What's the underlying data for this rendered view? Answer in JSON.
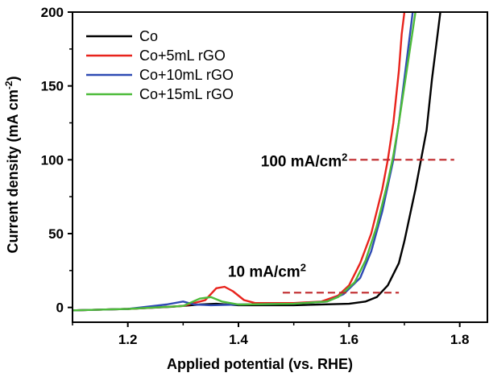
{
  "chart_data": {
    "type": "line",
    "xlabel": "Applied potential (vs. RHE)",
    "ylabel_main": "Current density (mA cm",
    "ylabel_sup": "-2",
    "ylabel_close": ")",
    "xlim": [
      1.1,
      1.85
    ],
    "ylim": [
      -10,
      200
    ],
    "x_ticks": [
      1.2,
      1.4,
      1.6,
      1.8
    ],
    "x_tick_labels": [
      "1.2",
      "1.4",
      "1.6",
      "1.8"
    ],
    "y_ticks": [
      0,
      50,
      100,
      150,
      200
    ],
    "y_tick_labels": [
      "0",
      "50",
      "100",
      "150",
      "200"
    ],
    "legend_position": "top-left",
    "series": [
      {
        "name": "Co",
        "color": "#000000",
        "points": [
          [
            1.1,
            -2
          ],
          [
            1.2,
            -1
          ],
          [
            1.28,
            0.5
          ],
          [
            1.33,
            2
          ],
          [
            1.36,
            2.5
          ],
          [
            1.4,
            1.5
          ],
          [
            1.5,
            1.5
          ],
          [
            1.6,
            2.5
          ],
          [
            1.63,
            4
          ],
          [
            1.65,
            7
          ],
          [
            1.67,
            15
          ],
          [
            1.69,
            30
          ],
          [
            1.7,
            45
          ],
          [
            1.72,
            80
          ],
          [
            1.74,
            120
          ],
          [
            1.75,
            155
          ],
          [
            1.76,
            185
          ],
          [
            1.765,
            200
          ]
        ]
      },
      {
        "name": "Co+5mL rGO",
        "color": "#e8231c",
        "points": [
          [
            1.1,
            -2
          ],
          [
            1.2,
            -1
          ],
          [
            1.3,
            1
          ],
          [
            1.34,
            5
          ],
          [
            1.36,
            13
          ],
          [
            1.375,
            14
          ],
          [
            1.39,
            11
          ],
          [
            1.41,
            5
          ],
          [
            1.43,
            3
          ],
          [
            1.5,
            3
          ],
          [
            1.55,
            4
          ],
          [
            1.58,
            8
          ],
          [
            1.6,
            15
          ],
          [
            1.62,
            30
          ],
          [
            1.64,
            50
          ],
          [
            1.66,
            80
          ],
          [
            1.67,
            100
          ],
          [
            1.68,
            125
          ],
          [
            1.69,
            160
          ],
          [
            1.695,
            185
          ],
          [
            1.7,
            200
          ]
        ]
      },
      {
        "name": "Co+10mL rGO",
        "color": "#2f4bb4",
        "points": [
          [
            1.1,
            -2
          ],
          [
            1.2,
            -1
          ],
          [
            1.27,
            2
          ],
          [
            1.3,
            4
          ],
          [
            1.32,
            2
          ],
          [
            1.35,
            1.5
          ],
          [
            1.4,
            2
          ],
          [
            1.5,
            2.5
          ],
          [
            1.56,
            4
          ],
          [
            1.59,
            9
          ],
          [
            1.62,
            20
          ],
          [
            1.64,
            38
          ],
          [
            1.66,
            65
          ],
          [
            1.68,
            100
          ],
          [
            1.69,
            125
          ],
          [
            1.7,
            155
          ],
          [
            1.71,
            185
          ],
          [
            1.715,
            200
          ]
        ]
      },
      {
        "name": "Co+15mL rGO",
        "color": "#4dbb3a",
        "points": [
          [
            1.1,
            -2
          ],
          [
            1.2,
            -1
          ],
          [
            1.3,
            1
          ],
          [
            1.33,
            6
          ],
          [
            1.35,
            7
          ],
          [
            1.37,
            4
          ],
          [
            1.4,
            2
          ],
          [
            1.5,
            2.5
          ],
          [
            1.56,
            4
          ],
          [
            1.58,
            7
          ],
          [
            1.61,
            17
          ],
          [
            1.63,
            32
          ],
          [
            1.65,
            55
          ],
          [
            1.67,
            85
          ],
          [
            1.68,
            103
          ],
          [
            1.69,
            125
          ],
          [
            1.7,
            150
          ],
          [
            1.71,
            175
          ],
          [
            1.72,
            200
          ]
        ]
      }
    ],
    "annotations": [
      {
        "text_main": "100 mA/cm",
        "text_sup": "2",
        "y": 100,
        "x_start": 1.6,
        "x_end": 1.79
      },
      {
        "text_main": "10 mA/cm",
        "text_sup": "2",
        "y": 10,
        "x_start": 1.48,
        "x_end": 1.69
      }
    ],
    "annotation_color": "#c0282b"
  }
}
